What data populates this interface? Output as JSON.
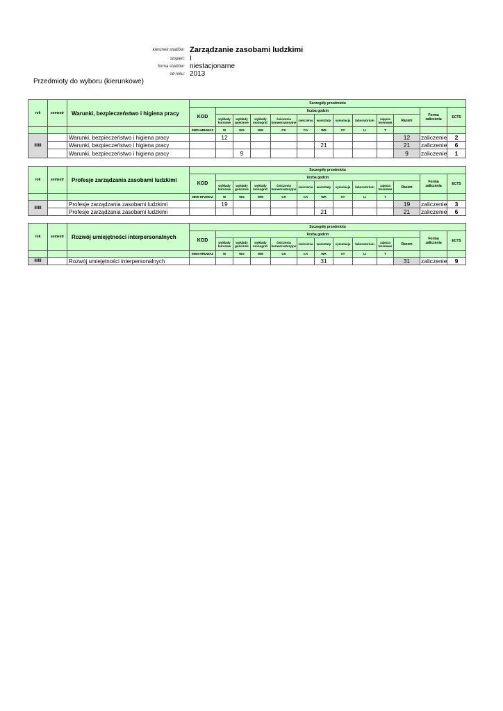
{
  "header": {
    "kierunek_label": "kierunek studiów:",
    "kierunek": "Zarządzanie zasobami ludzkimi",
    "stopien_label": "stopień:",
    "stopien": "I",
    "forma_label": "forma studiów:",
    "forma": "niestacjonarne",
    "od_roku_label": "od roku:",
    "od_roku": "2013"
  },
  "subtitle": "Przedmioty do wyboru (kierunkowe)",
  "columns": {
    "rok": "rok",
    "semestr": "semestr",
    "kod": "KOD",
    "szczegoly": "Szczegóły przedmiotu",
    "liczba_godzin": "liczba godzin",
    "hours": [
      "wykłady kursowe",
      "wykłady gościnne",
      "wykłady monograf.",
      "ćwiczenia konwersatoryjne",
      "ćwiczenia",
      "warsztaty",
      "symulacja",
      "laboratorium",
      "zajęcia terenowe"
    ],
    "hour_codes": [
      "W",
      "WG",
      "WM",
      "CK",
      "CA",
      "WR",
      "SY",
      "LI",
      "T"
    ],
    "razem": "Razem",
    "forma": "Forma zaliczenia",
    "ects": "ECTS"
  },
  "tables": [
    {
      "title": "Warunki, bezpieczeństwo i higiena pracy",
      "code": "0800-HBHWAZ",
      "rok": "II/III",
      "rows": [
        {
          "name": "Warunki, bezpieczeństwo i higiena pracy",
          "hours": [
            "12",
            "",
            "",
            "",
            "",
            "",
            "",
            "",
            ""
          ],
          "razem": "12",
          "forma": "zaliczenie",
          "ects": "2"
        },
        {
          "name": "Warunki, bezpieczeństwo i higiena pracy",
          "hours": [
            "",
            "",
            "",
            "",
            "",
            "21",
            "",
            "",
            ""
          ],
          "razem": "21",
          "forma": "zaliczenie",
          "ects": "6"
        },
        {
          "name": "Warunki, bezpieczeństwo i higiena pracy",
          "hours": [
            "",
            "9",
            "",
            "",
            "",
            "",
            "",
            "",
            ""
          ],
          "razem": "9",
          "forma": "zaliczenie",
          "ects": "1"
        }
      ]
    },
    {
      "title": "Profesje zarządzania zasobami ludzkimi",
      "code": "0800-HPZWAZ",
      "rok": "II/III",
      "rows": [
        {
          "name": "Profesje zarządzania zasobami ludzkimi",
          "hours": [
            "19",
            "",
            "",
            "",
            "",
            "",
            "",
            "",
            ""
          ],
          "razem": "19",
          "forma": "zaliczenie",
          "ects": "3"
        },
        {
          "name": "Profesje zarządzania zasobami ludzkimi",
          "hours": [
            "",
            "",
            "",
            "",
            "",
            "21",
            "",
            "",
            ""
          ],
          "razem": "21",
          "forma": "zaliczenie",
          "ects": "6"
        }
      ]
    },
    {
      "title": "Rozwój umiejętności interpersonalnych",
      "code": "0800-HRUWAZ",
      "rok": "II/III",
      "rows": [
        {
          "name": "Rozwój umiejętności interpersonalnych",
          "hours": [
            "",
            "",
            "",
            "",
            "",
            "31",
            "",
            "",
            ""
          ],
          "razem": "31",
          "forma": "zaliczenie",
          "ects": "9"
        }
      ]
    }
  ]
}
